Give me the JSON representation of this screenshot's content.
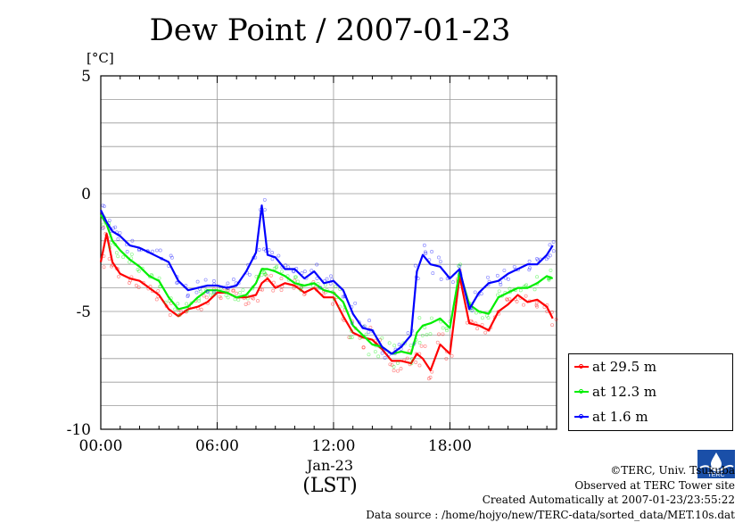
{
  "title": "Dew Point / 2007-01-23",
  "unit_label": "[°C]",
  "x_tick_labels": [
    "00:00",
    "06:00",
    "12:00",
    "18:00"
  ],
  "x_date_label": "Jan-23",
  "x_axis_label": "(LST)",
  "y_tick_labels": [
    "5",
    "0",
    "-5",
    "-10"
  ],
  "legend": [
    "at 29.5 m",
    "at 12.3 m",
    "at 1.6 m"
  ],
  "credits": {
    "line1": "©TERC, Univ. Tsukuba",
    "line2": "Observed at TERC Tower site",
    "line3": "Created Automatically at 2007-01-23/23:55:22",
    "line4": "Data source : /home/hojyo/new/TERC-data/sorted_data/MET.10s.dat"
  },
  "logo_text": "TERC",
  "colors": {
    "h29_5": "#ff0000",
    "h12_3": "#00ee00",
    "h1_6": "#0000ff",
    "grid": "#999999"
  },
  "chart_data": {
    "type": "line",
    "title": "Dew Point / 2007-01-23",
    "ylabel": "[°C]",
    "xlabel": "(LST)",
    "xlim": [
      0,
      23.5
    ],
    "ylim": [
      -10,
      5
    ],
    "x_unit": "hour of day (LST), Jan-23",
    "y_gridlines": [
      5,
      4,
      3,
      2,
      1,
      0,
      -1,
      -2,
      -3,
      -4,
      -5,
      -6,
      -7,
      -8,
      -9,
      -10
    ],
    "legend_position": "right",
    "series": [
      {
        "name": "at 29.5 m",
        "x": [
          0,
          0.3,
          0.6,
          1,
          1.5,
          2,
          2.5,
          3,
          3.5,
          4,
          4.5,
          5,
          5.5,
          6,
          6.5,
          7,
          7.5,
          8,
          8.3,
          8.6,
          9,
          9.5,
          10,
          10.5,
          11,
          11.5,
          12,
          12.5,
          13,
          13.5,
          14,
          14.5,
          15,
          15.5,
          16,
          16.3,
          16.6,
          17,
          17.5,
          18,
          18.5,
          19,
          19.5,
          20,
          20.5,
          21,
          21.5,
          22,
          22.5,
          23,
          23.3
        ],
        "y": [
          -2.9,
          -1.7,
          -2.9,
          -3.4,
          -3.6,
          -3.7,
          -4.0,
          -4.3,
          -4.9,
          -5.2,
          -4.9,
          -4.8,
          -4.6,
          -4.2,
          -4.2,
          -4.4,
          -4.4,
          -4.3,
          -3.8,
          -3.6,
          -4.0,
          -3.8,
          -3.9,
          -4.2,
          -4.0,
          -4.4,
          -4.4,
          -5.2,
          -5.9,
          -6.1,
          -6.2,
          -6.6,
          -7.1,
          -7.1,
          -7.2,
          -6.8,
          -7.0,
          -7.5,
          -6.4,
          -6.8,
          -3.5,
          -5.5,
          -5.6,
          -5.8,
          -5.0,
          -4.7,
          -4.3,
          -4.6,
          -4.5,
          -4.8,
          -5.3
        ]
      },
      {
        "name": "at 12.3 m",
        "x": [
          0,
          0.3,
          0.6,
          1,
          1.5,
          2,
          2.5,
          3,
          3.5,
          4,
          4.5,
          5,
          5.5,
          6,
          6.5,
          7,
          7.5,
          8,
          8.3,
          8.6,
          9,
          9.5,
          10,
          10.5,
          11,
          11.5,
          12,
          12.5,
          13,
          13.5,
          14,
          14.5,
          15,
          15.5,
          16,
          16.3,
          16.6,
          17,
          17.5,
          18,
          18.5,
          19,
          19.5,
          20,
          20.5,
          21,
          21.5,
          22,
          22.5,
          23,
          23.3
        ],
        "y": [
          -0.9,
          -1.3,
          -2.0,
          -2.4,
          -2.8,
          -3.1,
          -3.5,
          -3.7,
          -4.4,
          -4.9,
          -4.8,
          -4.4,
          -4.1,
          -4.1,
          -4.2,
          -4.4,
          -4.3,
          -3.8,
          -3.2,
          -3.2,
          -3.3,
          -3.5,
          -3.8,
          -3.9,
          -3.8,
          -4.1,
          -4.2,
          -4.6,
          -5.6,
          -6.0,
          -6.4,
          -6.5,
          -6.8,
          -6.7,
          -6.8,
          -5.9,
          -5.6,
          -5.5,
          -5.3,
          -5.7,
          -3.3,
          -4.7,
          -5.0,
          -5.1,
          -4.4,
          -4.2,
          -4.0,
          -4.0,
          -3.8,
          -3.5,
          -3.6
        ]
      },
      {
        "name": "at 1.6 m",
        "x": [
          0,
          0.3,
          0.6,
          1,
          1.5,
          2,
          2.5,
          3,
          3.5,
          4,
          4.5,
          5,
          5.5,
          6,
          6.5,
          7,
          7.5,
          8,
          8.3,
          8.6,
          9,
          9.5,
          10,
          10.5,
          11,
          11.5,
          12,
          12.5,
          13,
          13.5,
          14,
          14.5,
          15,
          15.5,
          16,
          16.3,
          16.6,
          17,
          17.5,
          18,
          18.5,
          19,
          19.5,
          20,
          20.5,
          21,
          21.5,
          22,
          22.5,
          23,
          23.3
        ],
        "y": [
          -0.7,
          -1.2,
          -1.6,
          -1.8,
          -2.2,
          -2.3,
          -2.5,
          -2.7,
          -2.9,
          -3.7,
          -4.1,
          -4.0,
          -3.9,
          -3.9,
          -4.0,
          -3.9,
          -3.3,
          -2.5,
          -0.5,
          -2.6,
          -2.7,
          -3.2,
          -3.2,
          -3.6,
          -3.3,
          -3.8,
          -3.7,
          -4.1,
          -5.1,
          -5.7,
          -5.8,
          -6.5,
          -6.8,
          -6.5,
          -6.0,
          -3.3,
          -2.6,
          -3.0,
          -3.1,
          -3.6,
          -3.2,
          -4.9,
          -4.2,
          -3.8,
          -3.7,
          -3.4,
          -3.2,
          -3.0,
          -3.0,
          -2.6,
          -2.2
        ]
      }
    ]
  }
}
